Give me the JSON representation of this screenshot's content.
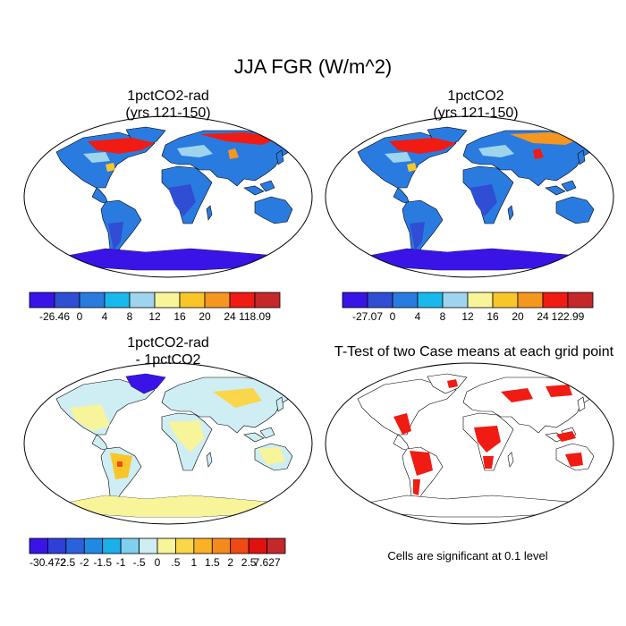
{
  "figure": {
    "title": "JJA FGR (W/m^2)"
  },
  "panels": [
    {
      "id": "p1",
      "title_line1": "1pctCO2-rad",
      "title_line2": "(yrs 121-150)",
      "colorbar": {
        "colors": [
          "#3a14e6",
          "#2f4ed4",
          "#2a7be0",
          "#1ab8ec",
          "#9fd4ee",
          "#f7f49a",
          "#f9c62a",
          "#f5961e",
          "#f01b12",
          "#c5282a"
        ],
        "labels": [
          "-26.46",
          "0",
          "4",
          "8",
          "12",
          "16",
          "20",
          "24",
          "118.09"
        ]
      }
    },
    {
      "id": "p2",
      "title_line1": "1pctCO2",
      "title_line2": "(yrs 121-150)",
      "colorbar": {
        "colors": [
          "#3a14e6",
          "#2f4ed4",
          "#2a7be0",
          "#1ab8ec",
          "#9fd4ee",
          "#f7f49a",
          "#f9c62a",
          "#f5961e",
          "#f01b12",
          "#c5282a"
        ],
        "labels": [
          "-27.07",
          "0",
          "4",
          "8",
          "12",
          "16",
          "20",
          "24",
          "122.99"
        ]
      }
    },
    {
      "id": "p3",
      "title_line1": "1pctCO2-rad",
      "title_line2": "- 1pctCO2",
      "colorbar": {
        "colors": [
          "#3a14e6",
          "#2f3fd8",
          "#2a62dc",
          "#2089e4",
          "#1cb0ea",
          "#7fd0ee",
          "#cfeef4",
          "#f7f49a",
          "#f9d64a",
          "#f9b228",
          "#f58a1c",
          "#f04a14",
          "#e0120f",
          "#c5282a"
        ],
        "labels": [
          "-30.472",
          "-2.5",
          "-2",
          "-1.5",
          "-1",
          "-.5",
          "0",
          ".5",
          "1",
          "1.5",
          "2",
          "2.5",
          "7.627"
        ]
      }
    },
    {
      "id": "p4",
      "title_line1": "T-Test of two Case means at each grid point",
      "note": "Cells are significant at 0.1 level"
    }
  ]
}
